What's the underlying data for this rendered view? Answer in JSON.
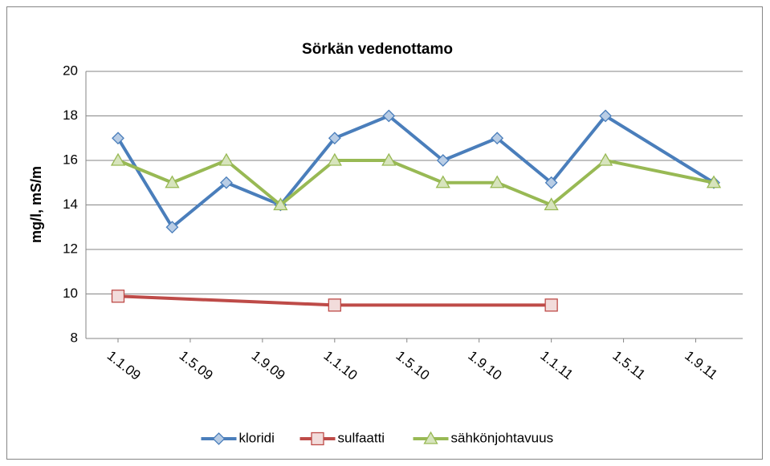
{
  "chart_data": {
    "type": "line",
    "title": "Sörkän vedenottamo",
    "y_label": "mg/l, mS/m",
    "x": [
      "2009-01",
      "2009-04",
      "2009-07",
      "2009-10",
      "2010-01",
      "2010-04",
      "2010-07",
      "2010-10",
      "2011-01",
      "2011-04",
      "2011-10"
    ],
    "series": [
      {
        "name": "kloridi",
        "color": "#4a7ebb",
        "marker": "diamond",
        "marker_fill": "#b9cde5",
        "values": [
          17,
          13,
          15,
          14,
          17,
          18,
          16,
          17,
          15,
          18,
          15
        ]
      },
      {
        "name": "sulfaatti",
        "color": "#be4b48",
        "marker": "square",
        "marker_fill": "#f2dcdb",
        "x": [
          "2009-01",
          "2010-01",
          "2011-01"
        ],
        "values": [
          9.9,
          9.5,
          9.5
        ]
      },
      {
        "name": "sähkönjohtavuus",
        "color": "#98b954",
        "marker": "triangle",
        "marker_fill": "#d7e4bd",
        "values": [
          16,
          15,
          16,
          14,
          16,
          16,
          15,
          15,
          14,
          16,
          15
        ]
      }
    ],
    "xlim": [
      "2009-01",
      "2011-10"
    ],
    "xticks": [
      {
        "value": "2009-01",
        "label": "1.1.09"
      },
      {
        "value": "2009-05",
        "label": "1.5.09"
      },
      {
        "value": "2009-09",
        "label": "1.9.09"
      },
      {
        "value": "2010-01",
        "label": "1.1.10"
      },
      {
        "value": "2010-05",
        "label": "1.5.10"
      },
      {
        "value": "2010-09",
        "label": "1.9.10"
      },
      {
        "value": "2011-01",
        "label": "1.1.11"
      },
      {
        "value": "2011-05",
        "label": "1.5.11"
      },
      {
        "value": "2011-09",
        "label": "1.9.11"
      }
    ],
    "ylim": [
      8,
      20
    ],
    "yticks": [
      8,
      10,
      12,
      14,
      16,
      18,
      20
    ],
    "grid": true,
    "legend": "bottom"
  }
}
